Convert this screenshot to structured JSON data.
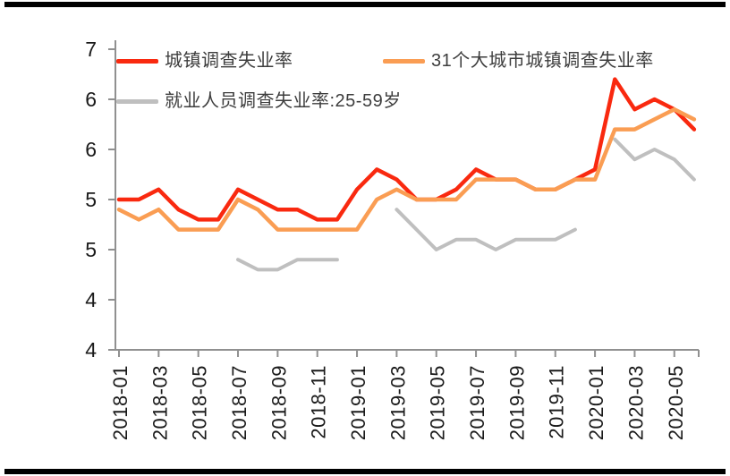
{
  "chart_data": {
    "type": "line",
    "x": [
      "2018-01",
      "2018-02",
      "2018-03",
      "2018-04",
      "2018-05",
      "2018-06",
      "2018-07",
      "2018-08",
      "2018-09",
      "2018-10",
      "2018-11",
      "2018-12",
      "2019-01",
      "2019-02",
      "2019-03",
      "2019-04",
      "2019-05",
      "2019-06",
      "2019-07",
      "2019-08",
      "2019-09",
      "2019-10",
      "2019-11",
      "2019-12",
      "2020-01",
      "2020-02",
      "2020-03",
      "2020-04",
      "2020-05",
      "2020-06"
    ],
    "series": [
      {
        "name": "城镇调查失业率",
        "color": "#F9290F",
        "line_width": 4.5,
        "values": [
          5.0,
          5.0,
          5.1,
          4.9,
          4.8,
          4.8,
          5.1,
          5.0,
          4.9,
          4.9,
          4.8,
          4.8,
          5.1,
          5.3,
          5.2,
          5.0,
          5.0,
          5.1,
          5.3,
          5.2,
          5.2,
          5.1,
          5.1,
          5.2,
          5.3,
          6.2,
          5.9,
          6.0,
          5.9,
          5.7
        ]
      },
      {
        "name": "31个大城市城镇调查失业率",
        "color": "#FA9D53",
        "line_width": 4.5,
        "values": [
          4.9,
          4.8,
          4.9,
          4.7,
          4.7,
          4.7,
          5.0,
          4.9,
          4.7,
          4.7,
          4.7,
          4.7,
          4.7,
          5.0,
          5.1,
          5.0,
          5.0,
          5.0,
          5.2,
          5.2,
          5.2,
          5.1,
          5.1,
          5.2,
          5.2,
          5.7,
          5.7,
          5.8,
          5.9,
          5.8
        ]
      },
      {
        "name": "就业人员调查失业率:25-59岁",
        "color": "#BFBFBF",
        "line_width": 4,
        "values": [
          null,
          null,
          null,
          null,
          null,
          null,
          4.4,
          4.3,
          4.3,
          4.4,
          4.4,
          4.4,
          null,
          null,
          4.9,
          4.7,
          4.5,
          4.6,
          4.6,
          4.5,
          4.6,
          4.6,
          4.6,
          4.7,
          null,
          5.6,
          5.4,
          5.5,
          5.4,
          5.2
        ]
      }
    ],
    "legend_position": "top-left-inside",
    "grid": false,
    "ylim": [
      3.5,
      6.5
    ],
    "ytick_step": 0.5,
    "ytick_labels_top_to_bottom": [
      "7",
      "6",
      "6",
      "5",
      "5",
      "4",
      "4"
    ],
    "xtick_labels": [
      "2018-01",
      "2018-03",
      "2018-05",
      "2018-07",
      "2018-09",
      "2018-11",
      "2019-01",
      "2019-03",
      "2019-05",
      "2019-07",
      "2019-09",
      "2019-11",
      "2020-01",
      "2020-03",
      "2020-05"
    ],
    "axis_color": "#909090",
    "tick_label_color": "#1a1a1a"
  }
}
